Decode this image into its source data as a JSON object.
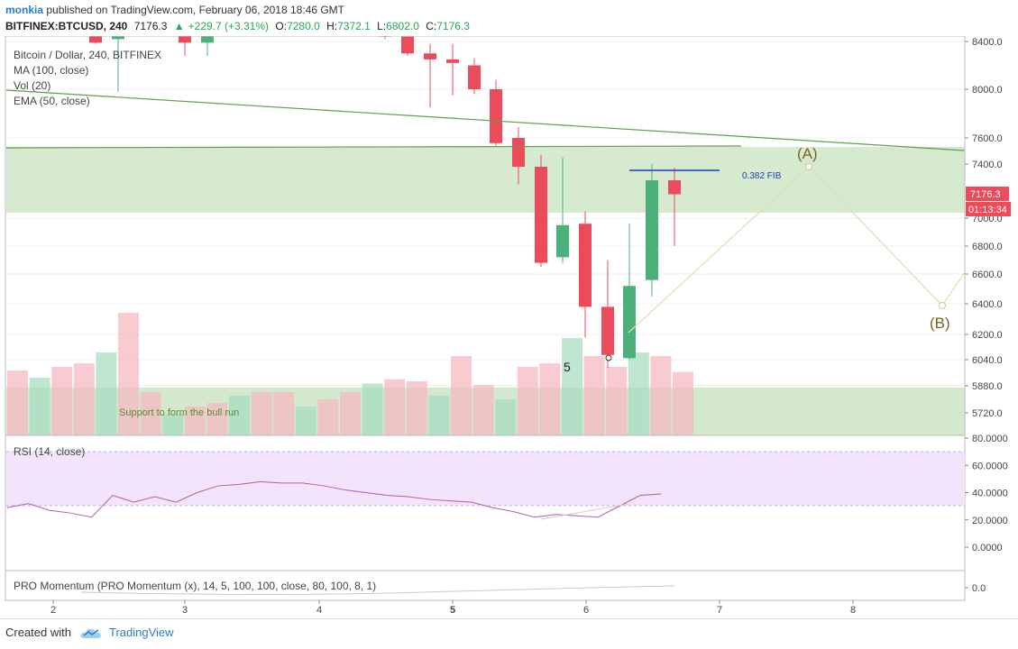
{
  "header": {
    "user": "monkia",
    "published": "published on TradingView.com, February 06, 2018 18:46 GMT"
  },
  "ticker": {
    "symbol": "BITFINEX:BTCUSD, 240",
    "last": "7176.3",
    "change": "+229.7 (+3.31%)",
    "o_label": "O:",
    "o": "7280.0",
    "h_label": "H:",
    "h": "7372.1",
    "l_label": "L:",
    "l": "6802.0",
    "c_label": "C:",
    "c": "7176.3"
  },
  "legend": {
    "title": "Bitcoin / Dollar, 240, BITFINEX",
    "ma": "MA (100, close)",
    "vol": "Vol (20)",
    "ema": "EMA (50, close)"
  },
  "price_axis": {
    "ticks": [
      "8400.0",
      "8000.0",
      "7600.0",
      "7400.0",
      "7000.0",
      "6800.0",
      "6600.0",
      "6400.0",
      "6200.0",
      "6040.0",
      "5880.0",
      "5720.0"
    ],
    "last_price": "7176.3",
    "countdown": "01:13:34"
  },
  "rsi_panel": {
    "label": "RSI (14, close)",
    "ticks": [
      "80.0000",
      "60.0000",
      "40.0000",
      "20.0000",
      "0.0000"
    ]
  },
  "momentum_panel": {
    "label": "PRO Momentum (PRO Momentum (x), 14, 5, 100, 100, close, 80, 100, 8, 1)",
    "tick": "0.0"
  },
  "time_axis": {
    "ticks": [
      "2",
      "3",
      "4",
      "5",
      "6",
      "7",
      "8"
    ]
  },
  "annotations": {
    "fib": "0.382 FIB",
    "wave_a": "(A)",
    "wave_b": "(B)",
    "wave_5": "5",
    "support": "Support to form the bull run"
  },
  "colors": {
    "up": "#4cb07a",
    "down": "#ec4b5c",
    "support_zone": "#cfe6c8",
    "rsi_band": "#f1e4fb",
    "trend_line": "#5ea04a",
    "fib_line": "#1a3fb5",
    "rsi_line": "#b05fb0"
  },
  "chart_data": {
    "type": "candlestick",
    "title": "Bitcoin / Dollar, 240, BITFINEX",
    "ylim": [
      5620,
      8500
    ],
    "candles": [
      {
        "o": 8470,
        "h": 8520,
        "l": 8380,
        "c": 8390
      },
      {
        "o": 8420,
        "h": 8460,
        "l": 7980,
        "c": 8470
      },
      {
        "o": 8470,
        "h": 8510,
        "l": 8280,
        "c": 8390
      },
      {
        "o": 8390,
        "h": 8500,
        "l": 8280,
        "c": 8470
      },
      {
        "o": 8470,
        "h": 8500,
        "l": 8420,
        "c": 8440
      },
      {
        "o": 8440,
        "h": 8480,
        "l": 8280,
        "c": 8300
      },
      {
        "o": 8300,
        "h": 8380,
        "l": 7850,
        "c": 8250
      },
      {
        "o": 8250,
        "h": 8380,
        "l": 7950,
        "c": 8220
      },
      {
        "o": 8200,
        "h": 8260,
        "l": 7960,
        "c": 8000
      },
      {
        "o": 8000,
        "h": 8080,
        "l": 7540,
        "c": 7560
      },
      {
        "o": 7600,
        "h": 7690,
        "l": 7250,
        "c": 7380
      },
      {
        "o": 7380,
        "h": 7470,
        "l": 6650,
        "c": 6680
      },
      {
        "o": 6720,
        "h": 7450,
        "l": 6680,
        "c": 6950
      },
      {
        "o": 6960,
        "h": 7050,
        "l": 6180,
        "c": 6380
      },
      {
        "o": 6380,
        "h": 6700,
        "l": 5990,
        "c": 6070
      },
      {
        "o": 6050,
        "h": 6960,
        "l": 6040,
        "c": 6520
      },
      {
        "o": 6560,
        "h": 7400,
        "l": 6450,
        "c": 7280
      },
      {
        "o": 7280,
        "h": 7372.1,
        "l": 6802,
        "c": 7176.3
      }
    ],
    "volume": [
      90,
      80,
      95,
      100,
      115,
      170,
      60,
      30,
      40,
      45,
      55,
      60,
      60,
      40,
      50,
      60,
      72,
      78,
      75,
      55,
      110,
      70,
      50,
      95,
      100,
      135,
      110,
      95,
      115,
      110,
      88
    ],
    "rsi": [
      29,
      32,
      27,
      25,
      22,
      38,
      33,
      37,
      33,
      40,
      45,
      46,
      48,
      47,
      47,
      45,
      42,
      40,
      38,
      37,
      35,
      34,
      33,
      29,
      26,
      22,
      24,
      23,
      22,
      30,
      38,
      39
    ],
    "rsi_ylim": [
      0,
      80
    ],
    "momentum_axis_value": 0.0,
    "x_ticks": [
      "2",
      "3",
      "4",
      "5",
      "6",
      "7",
      "8"
    ]
  }
}
